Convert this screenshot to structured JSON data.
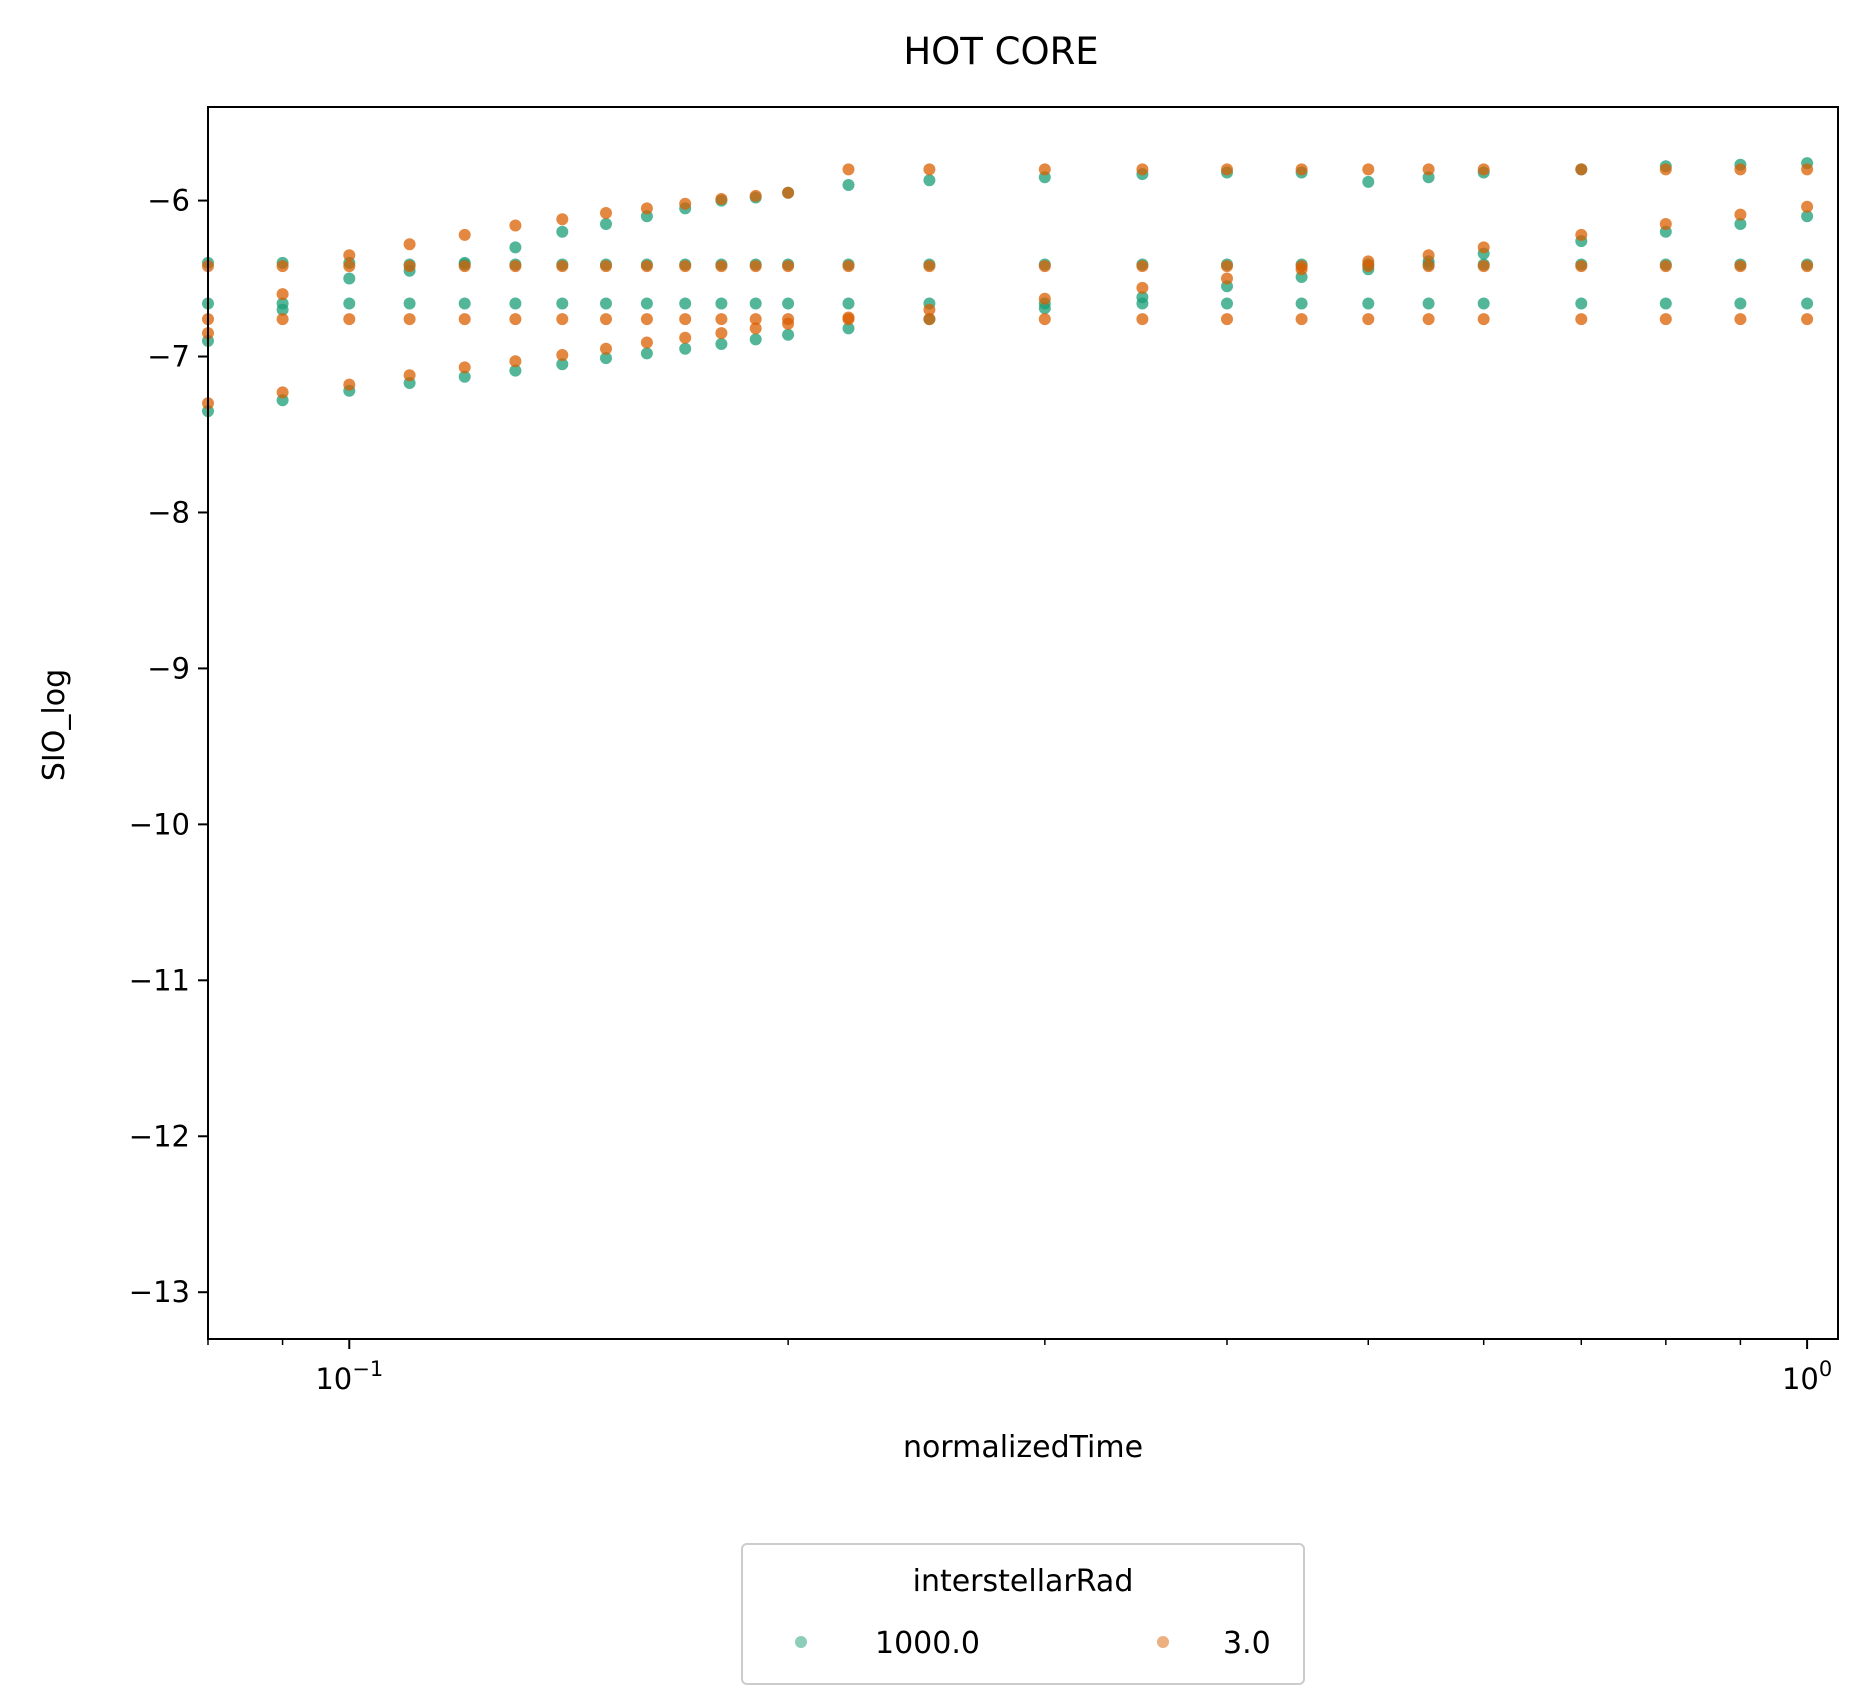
{
  "chart_data": {
    "type": "scatter",
    "title": "HOT CORE",
    "xlabel": "normalizedTime",
    "ylabel": "SIO_log",
    "x_scale": "log",
    "xlim": [
      0.08,
      1.05
    ],
    "ylim": [
      -13.3,
      -5.4
    ],
    "x_ticks": [
      {
        "value": 0.1,
        "base": "10",
        "exp": "−1"
      },
      {
        "value": 1.0,
        "base": "10",
        "exp": "0"
      }
    ],
    "y_ticks": [
      {
        "value": -6,
        "label": "−6"
      },
      {
        "value": -7,
        "label": "−7"
      },
      {
        "value": -8,
        "label": "−8"
      },
      {
        "value": -9,
        "label": "−9"
      },
      {
        "value": -10,
        "label": "−10"
      },
      {
        "value": -11,
        "label": "−11"
      },
      {
        "value": -12,
        "label": "−12"
      },
      {
        "value": -13,
        "label": "−13"
      }
    ],
    "grid": false,
    "legend": {
      "title": "interstellarRad",
      "placement": "bottom-center",
      "entries": [
        "1000.0",
        "3.0"
      ]
    },
    "series": [
      {
        "name": "1000.0",
        "color": "#1b9e77",
        "x": [
          0.08,
          0.09,
          0.1,
          0.11,
          0.12,
          0.13,
          0.14,
          0.15,
          0.16,
          0.17,
          0.18,
          0.19,
          0.2,
          0.22,
          0.25,
          0.3,
          0.35,
          0.4,
          0.45,
          0.5,
          0.55,
          0.6,
          0.7,
          0.8,
          0.9,
          1.0
        ],
        "lines": [
          [
            -6.4,
            -6.4,
            -6.4,
            -6.41,
            -6.41,
            -6.41,
            -6.41,
            -6.41,
            -6.41,
            -6.41,
            -6.41,
            -6.41,
            -6.41,
            -6.41,
            -6.41,
            -6.41,
            -6.41,
            -6.41,
            -6.41,
            -6.41,
            -6.41,
            -6.41,
            -6.41,
            -6.41,
            -6.41,
            -6.41
          ],
          [
            -6.66,
            -6.66,
            -6.66,
            -6.66,
            -6.66,
            -6.66,
            -6.66,
            -6.66,
            -6.66,
            -6.66,
            -6.66,
            -6.66,
            -6.66,
            -6.66,
            -6.66,
            -6.66,
            -6.66,
            -6.66,
            -6.66,
            -6.66,
            -6.66,
            -6.66,
            -6.66,
            -6.66,
            -6.66,
            -6.66
          ],
          [
            -6.9,
            -6.7,
            -6.5,
            -6.45,
            -6.4,
            -6.3,
            -6.2,
            -6.15,
            -6.1,
            -6.05,
            -6.0,
            -5.98,
            -5.95,
            -5.9,
            -5.87,
            -5.85,
            -5.83,
            -5.82,
            -5.82,
            -5.88,
            -5.85,
            -5.82,
            -5.8,
            -5.78,
            -5.77,
            -5.76
          ],
          [
            -7.35,
            -7.28,
            -7.22,
            -7.17,
            -7.13,
            -7.09,
            -7.05,
            -7.01,
            -6.98,
            -6.95,
            -6.92,
            -6.89,
            -6.86,
            -6.82,
            -6.76,
            -6.69,
            -6.62,
            -6.55,
            -6.49,
            -6.44,
            -6.39,
            -6.34,
            -6.26,
            -6.2,
            -6.15,
            -6.1
          ]
        ]
      },
      {
        "name": "3.0",
        "color": "#d95f02",
        "x": [
          0.08,
          0.09,
          0.1,
          0.11,
          0.12,
          0.13,
          0.14,
          0.15,
          0.16,
          0.17,
          0.18,
          0.19,
          0.2,
          0.22,
          0.25,
          0.3,
          0.35,
          0.4,
          0.45,
          0.5,
          0.55,
          0.6,
          0.7,
          0.8,
          0.9,
          1.0
        ],
        "lines": [
          [
            -6.42,
            -6.42,
            -6.42,
            -6.42,
            -6.42,
            -6.42,
            -6.42,
            -6.42,
            -6.42,
            -6.42,
            -6.42,
            -6.42,
            -6.42,
            -6.42,
            -6.42,
            -6.42,
            -6.42,
            -6.42,
            -6.42,
            -6.42,
            -6.42,
            -6.42,
            -6.42,
            -6.42,
            -6.42,
            -6.42
          ],
          [
            -6.76,
            -6.76,
            -6.76,
            -6.76,
            -6.76,
            -6.76,
            -6.76,
            -6.76,
            -6.76,
            -6.76,
            -6.76,
            -6.76,
            -6.76,
            -6.76,
            -6.76,
            -6.76,
            -6.76,
            -6.76,
            -6.76,
            -6.76,
            -6.76,
            -6.76,
            -6.76,
            -6.76,
            -6.76,
            -6.76
          ],
          [
            -6.85,
            -6.6,
            -6.35,
            -6.28,
            -6.22,
            -6.16,
            -6.12,
            -6.08,
            -6.05,
            -6.02,
            -5.99,
            -5.97,
            -5.95,
            -5.8,
            -5.8,
            -5.8,
            -5.8,
            -5.8,
            -5.8,
            -5.8,
            -5.8,
            -5.8,
            -5.8,
            -5.8,
            -5.8,
            -5.8
          ],
          [
            -7.3,
            -7.23,
            -7.18,
            -7.12,
            -7.07,
            -7.03,
            -6.99,
            -6.95,
            -6.91,
            -6.88,
            -6.85,
            -6.82,
            -6.79,
            -6.75,
            -6.7,
            -6.63,
            -6.56,
            -6.5,
            -6.44,
            -6.39,
            -6.35,
            -6.3,
            -6.22,
            -6.15,
            -6.09,
            -6.04
          ]
        ]
      }
    ]
  }
}
